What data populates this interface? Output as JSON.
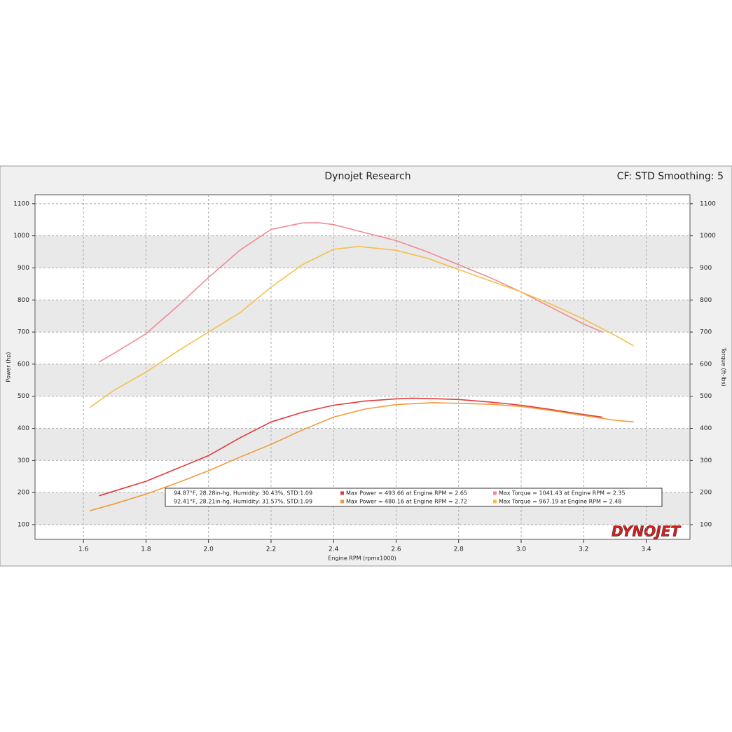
{
  "chart_data": {
    "type": "line",
    "title": "Dynojet Research",
    "subtitle": "CF: STD Smoothing: 5",
    "x_label": "Engine RPM (rpmx1000)",
    "y_label": "Power (hp)",
    "y2_label": "Torque (ft-lbs)",
    "logo": "DYNOJET",
    "xlim": [
      1.445,
      3.54
    ],
    "ylim": [
      54,
      1128
    ],
    "y2lim": [
      54,
      1128
    ],
    "xticks": [
      1.6,
      1.8,
      {
        "value": 2,
        "label": "2.0"
      },
      2.2,
      2.4,
      2.6,
      2.8,
      {
        "value": 3,
        "label": "3.0"
      },
      3.2,
      3.4
    ],
    "yticks": [
      100,
      200,
      300,
      400,
      500,
      600,
      700,
      800,
      900,
      1000,
      1100
    ],
    "y2ticks": [
      100,
      200,
      300,
      400,
      500,
      600,
      700,
      800,
      900,
      1000,
      1100
    ],
    "grid": true,
    "runs": [
      "94.87°F, 28.28in-hg, Humidity: 30.43%, STD:1.09",
      "92.41°F, 28.21in-hg, Humidity: 31.57%, STD:1.09"
    ],
    "series": [
      {
        "name": "Max Power = 493.66 at Engine RPM = 2.65",
        "color": "#e23a3a",
        "run": 0,
        "x": [
          1.65,
          1.7,
          1.8,
          1.9,
          2.0,
          2.1,
          2.2,
          2.3,
          2.4,
          2.5,
          2.6,
          2.65,
          2.7,
          2.8,
          2.9,
          3.0,
          3.1,
          3.2,
          3.26
        ],
        "values": [
          190,
          205,
          235,
          275,
          315,
          370,
          420,
          450,
          472,
          485,
          492,
          494,
          493,
          490,
          482,
          472,
          458,
          443,
          435
        ]
      },
      {
        "name": "Max Torque = 1041.43 at Engine RPM = 2.35",
        "color": "#f28a96",
        "run": 0,
        "axis": "y2",
        "x": [
          1.65,
          1.7,
          1.8,
          1.9,
          2.0,
          2.1,
          2.2,
          2.3,
          2.35,
          2.4,
          2.5,
          2.6,
          2.7,
          2.8,
          2.9,
          3.0,
          3.1,
          3.2,
          3.26
        ],
        "values": [
          607,
          635,
          695,
          780,
          870,
          955,
          1020,
          1040,
          1041,
          1035,
          1010,
          985,
          950,
          910,
          870,
          825,
          775,
          725,
          700
        ]
      },
      {
        "name": "Max Power = 480.16 at Engine RPM = 2.72",
        "color": "#f29a3a",
        "run": 1,
        "x": [
          1.62,
          1.7,
          1.8,
          1.9,
          2.0,
          2.1,
          2.2,
          2.3,
          2.4,
          2.5,
          2.6,
          2.72,
          2.8,
          2.9,
          3.0,
          3.1,
          3.2,
          3.3,
          3.36
        ],
        "values": [
          143,
          165,
          195,
          230,
          268,
          310,
          350,
          395,
          435,
          460,
          474,
          480,
          478,
          475,
          468,
          455,
          440,
          425,
          420
        ]
      },
      {
        "name": "Max Torque = 967.19 at Engine RPM = 2.48",
        "color": "#f5c04a",
        "run": 1,
        "axis": "y2",
        "x": [
          1.62,
          1.7,
          1.8,
          1.9,
          2.0,
          2.1,
          2.2,
          2.3,
          2.4,
          2.48,
          2.6,
          2.7,
          2.8,
          2.9,
          3.0,
          3.1,
          3.2,
          3.3,
          3.36
        ],
        "values": [
          465,
          520,
          575,
          640,
          700,
          760,
          840,
          910,
          958,
          967,
          955,
          930,
          895,
          860,
          825,
          785,
          740,
          690,
          657
        ]
      }
    ]
  }
}
